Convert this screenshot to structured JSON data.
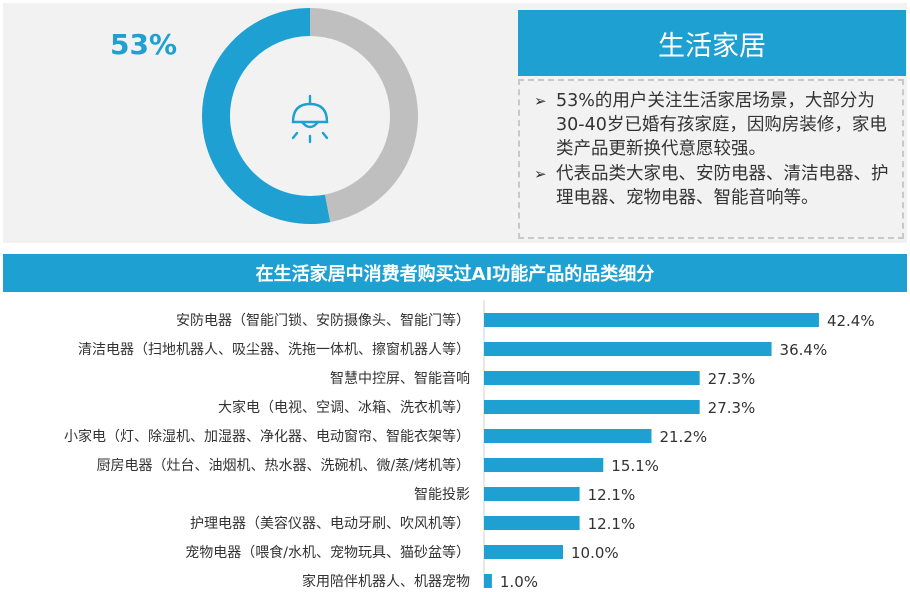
{
  "header": {
    "title": "生活家居",
    "percent_label": "53%",
    "icon": "ceiling-lamp-icon"
  },
  "description": {
    "items": [
      "53%的用户关注生活家居场景，大部分为30-40岁已婚有孩家庭，因购房装修，家电类产品更新换代意愿较强。",
      "代表品类大家电、安防电器、清洁电器、护理电器、宠物电器、智能音响等。"
    ]
  },
  "colors": {
    "accent": "#1ea0d3",
    "donut_rest": "#bfbfbf",
    "panel_bg": "#f2f2f2"
  },
  "chart_data": [
    {
      "type": "pie",
      "values": [
        53,
        47
      ],
      "labels": [
        "53%",
        ""
      ],
      "style": "donut"
    },
    {
      "type": "bar",
      "orientation": "horizontal",
      "title": "在生活家居中消费者购买过AI功能产品的品类细分",
      "categories": [
        "安防电器（智能门锁、安防摄像头、智能门等）",
        "清洁电器（扫地机器人、吸尘器、洗拖一体机、擦窗机器人等）",
        "智慧中控屏、智能音响",
        "大家电（电视、空调、冰箱、洗衣机等）",
        "小家电（灯、除湿机、加湿器、净化器、电动窗帘、智能衣架等）",
        "厨房电器（灶台、油烟机、热水器、洗碗机、微/蒸/烤机等）",
        "智能投影",
        "护理电器（美容仪器、电动牙刷、吹风机等）",
        "宠物电器（喂食/水机、宠物玩具、猫砂盆等）",
        "家用陪伴机器人、机器宠物"
      ],
      "values": [
        42.4,
        36.4,
        27.3,
        27.3,
        21.2,
        15.1,
        12.1,
        12.1,
        10.0,
        1.0
      ],
      "value_labels": [
        "42.4%",
        "36.4%",
        "27.3%",
        "27.3%",
        "21.2%",
        "15.1%",
        "12.1%",
        "12.1%",
        "10.0%",
        "1.0%"
      ]
    }
  ]
}
